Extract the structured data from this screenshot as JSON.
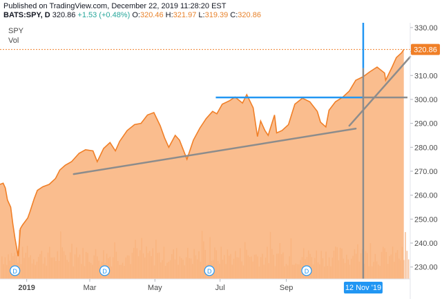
{
  "header": {
    "published": "Published on TradingView.com, December 22, 2019 11:28:20 EST",
    "symbol": "BATS:SPY, D",
    "last": "320.86",
    "change": "+1.53 (+0.48%)",
    "open_label": "O:",
    "open": "320.46",
    "high_label": "H:",
    "high": "321.97",
    "low_label": "L:",
    "low": "319.39",
    "close_label": "C:",
    "close": "320.86"
  },
  "legend": {
    "symbol": "SPY",
    "volume": "Vol"
  },
  "colors": {
    "price_line": "#f07f27",
    "price_fill": "#f9b27a",
    "volume": "#f5b689",
    "trendline": "#8c8c8c",
    "horizontal_blue": "#2196f3",
    "date_badge_bg": "#2196f3",
    "price_badge_bg": "#f07f27"
  },
  "chart_data": {
    "type": "area",
    "x_ticks": [
      "2019",
      "Mar",
      "May",
      "Jul",
      "Sep"
    ],
    "x_tick_positions": [
      "2019-01-01",
      "2019-03-01",
      "2019-05-01",
      "2019-07-01",
      "2019-09-01"
    ],
    "y_ticks": [
      230,
      240,
      250,
      260,
      270,
      280,
      290,
      300,
      310,
      320,
      330
    ],
    "ylim": [
      225,
      332
    ],
    "xlim": [
      "2018-12-07",
      "2019-12-26"
    ],
    "last_price_label": "320.86",
    "last_price": 320.86,
    "series": [
      {
        "x": [
          "2018-12-07",
          "2018-12-10",
          "2018-12-12",
          "2018-12-14",
          "2018-12-17",
          "2018-12-19",
          "2018-12-21",
          "2018-12-24",
          "2018-12-26",
          "2018-12-28",
          "2019-01-02",
          "2019-01-04",
          "2019-01-08",
          "2019-01-11",
          "2019-01-16",
          "2019-01-22",
          "2019-01-28",
          "2019-02-01",
          "2019-02-06",
          "2019-02-12",
          "2019-02-19",
          "2019-02-25",
          "2019-03-04",
          "2019-03-08",
          "2019-03-14",
          "2019-03-20",
          "2019-03-25",
          "2019-03-29",
          "2019-04-05",
          "2019-04-12",
          "2019-04-18",
          "2019-04-24",
          "2019-04-30",
          "2019-05-06",
          "2019-05-10",
          "2019-05-14",
          "2019-05-20",
          "2019-05-24",
          "2019-05-31",
          "2019-06-06",
          "2019-06-12",
          "2019-06-18",
          "2019-06-24",
          "2019-06-28",
          "2019-07-03",
          "2019-07-10",
          "2019-07-15",
          "2019-07-22",
          "2019-07-26",
          "2019-08-01",
          "2019-08-05",
          "2019-08-08",
          "2019-08-12",
          "2019-08-15",
          "2019-08-21",
          "2019-08-23",
          "2019-08-28",
          "2019-09-03",
          "2019-09-09",
          "2019-09-16",
          "2019-09-23",
          "2019-09-30",
          "2019-10-03",
          "2019-10-08",
          "2019-10-11",
          "2019-10-17",
          "2019-10-24",
          "2019-10-30",
          "2019-11-05",
          "2019-11-12",
          "2019-11-18",
          "2019-11-25",
          "2019-12-02",
          "2019-12-03",
          "2019-12-09",
          "2019-12-13",
          "2019-12-18",
          "2019-12-20"
        ],
        "values": [
          264.5,
          265.0,
          263.0,
          258.0,
          255.0,
          248.0,
          242.0,
          234.5,
          246.0,
          247.5,
          250.5,
          253.0,
          258.5,
          262.0,
          263.5,
          264.5,
          267.0,
          270.5,
          272.5,
          274.0,
          277.5,
          279.0,
          278.5,
          274.0,
          279.5,
          282.0,
          278.5,
          282.5,
          287.0,
          289.5,
          290.0,
          293.5,
          294.5,
          289.0,
          284.0,
          280.0,
          285.0,
          283.0,
          275.0,
          283.0,
          288.0,
          292.0,
          295.0,
          294.0,
          298.0,
          299.5,
          301.0,
          298.5,
          302.0,
          296.5,
          284.5,
          291.0,
          287.0,
          285.0,
          293.5,
          286.0,
          287.0,
          289.5,
          298.0,
          300.5,
          299.0,
          295.0,
          290.5,
          288.5,
          295.5,
          299.0,
          301.0,
          303.5,
          308.0,
          309.5,
          311.5,
          313.5,
          311.0,
          308.0,
          313.5,
          317.5,
          319.5,
          320.86
        ]
      }
    ],
    "annotations": {
      "resistance_level": 300.8,
      "resistance_start": "2019-06-27",
      "cross_date_label": "12 Nov '19",
      "cross_date": "2019-11-12",
      "trendlines": [
        {
          "from": [
            "2019-02-14",
            268.8
          ],
          "to": [
            "2019-11-05",
            287.8
          ]
        },
        {
          "from": [
            "2019-10-30",
            289.0
          ],
          "to": [
            "2019-12-26",
            317.8
          ]
        }
      ]
    },
    "dividend_markers": [
      "2018-12-21",
      "2019-03-15",
      "2019-06-21",
      "2019-09-20"
    ],
    "dividend_marker_label": "D"
  }
}
